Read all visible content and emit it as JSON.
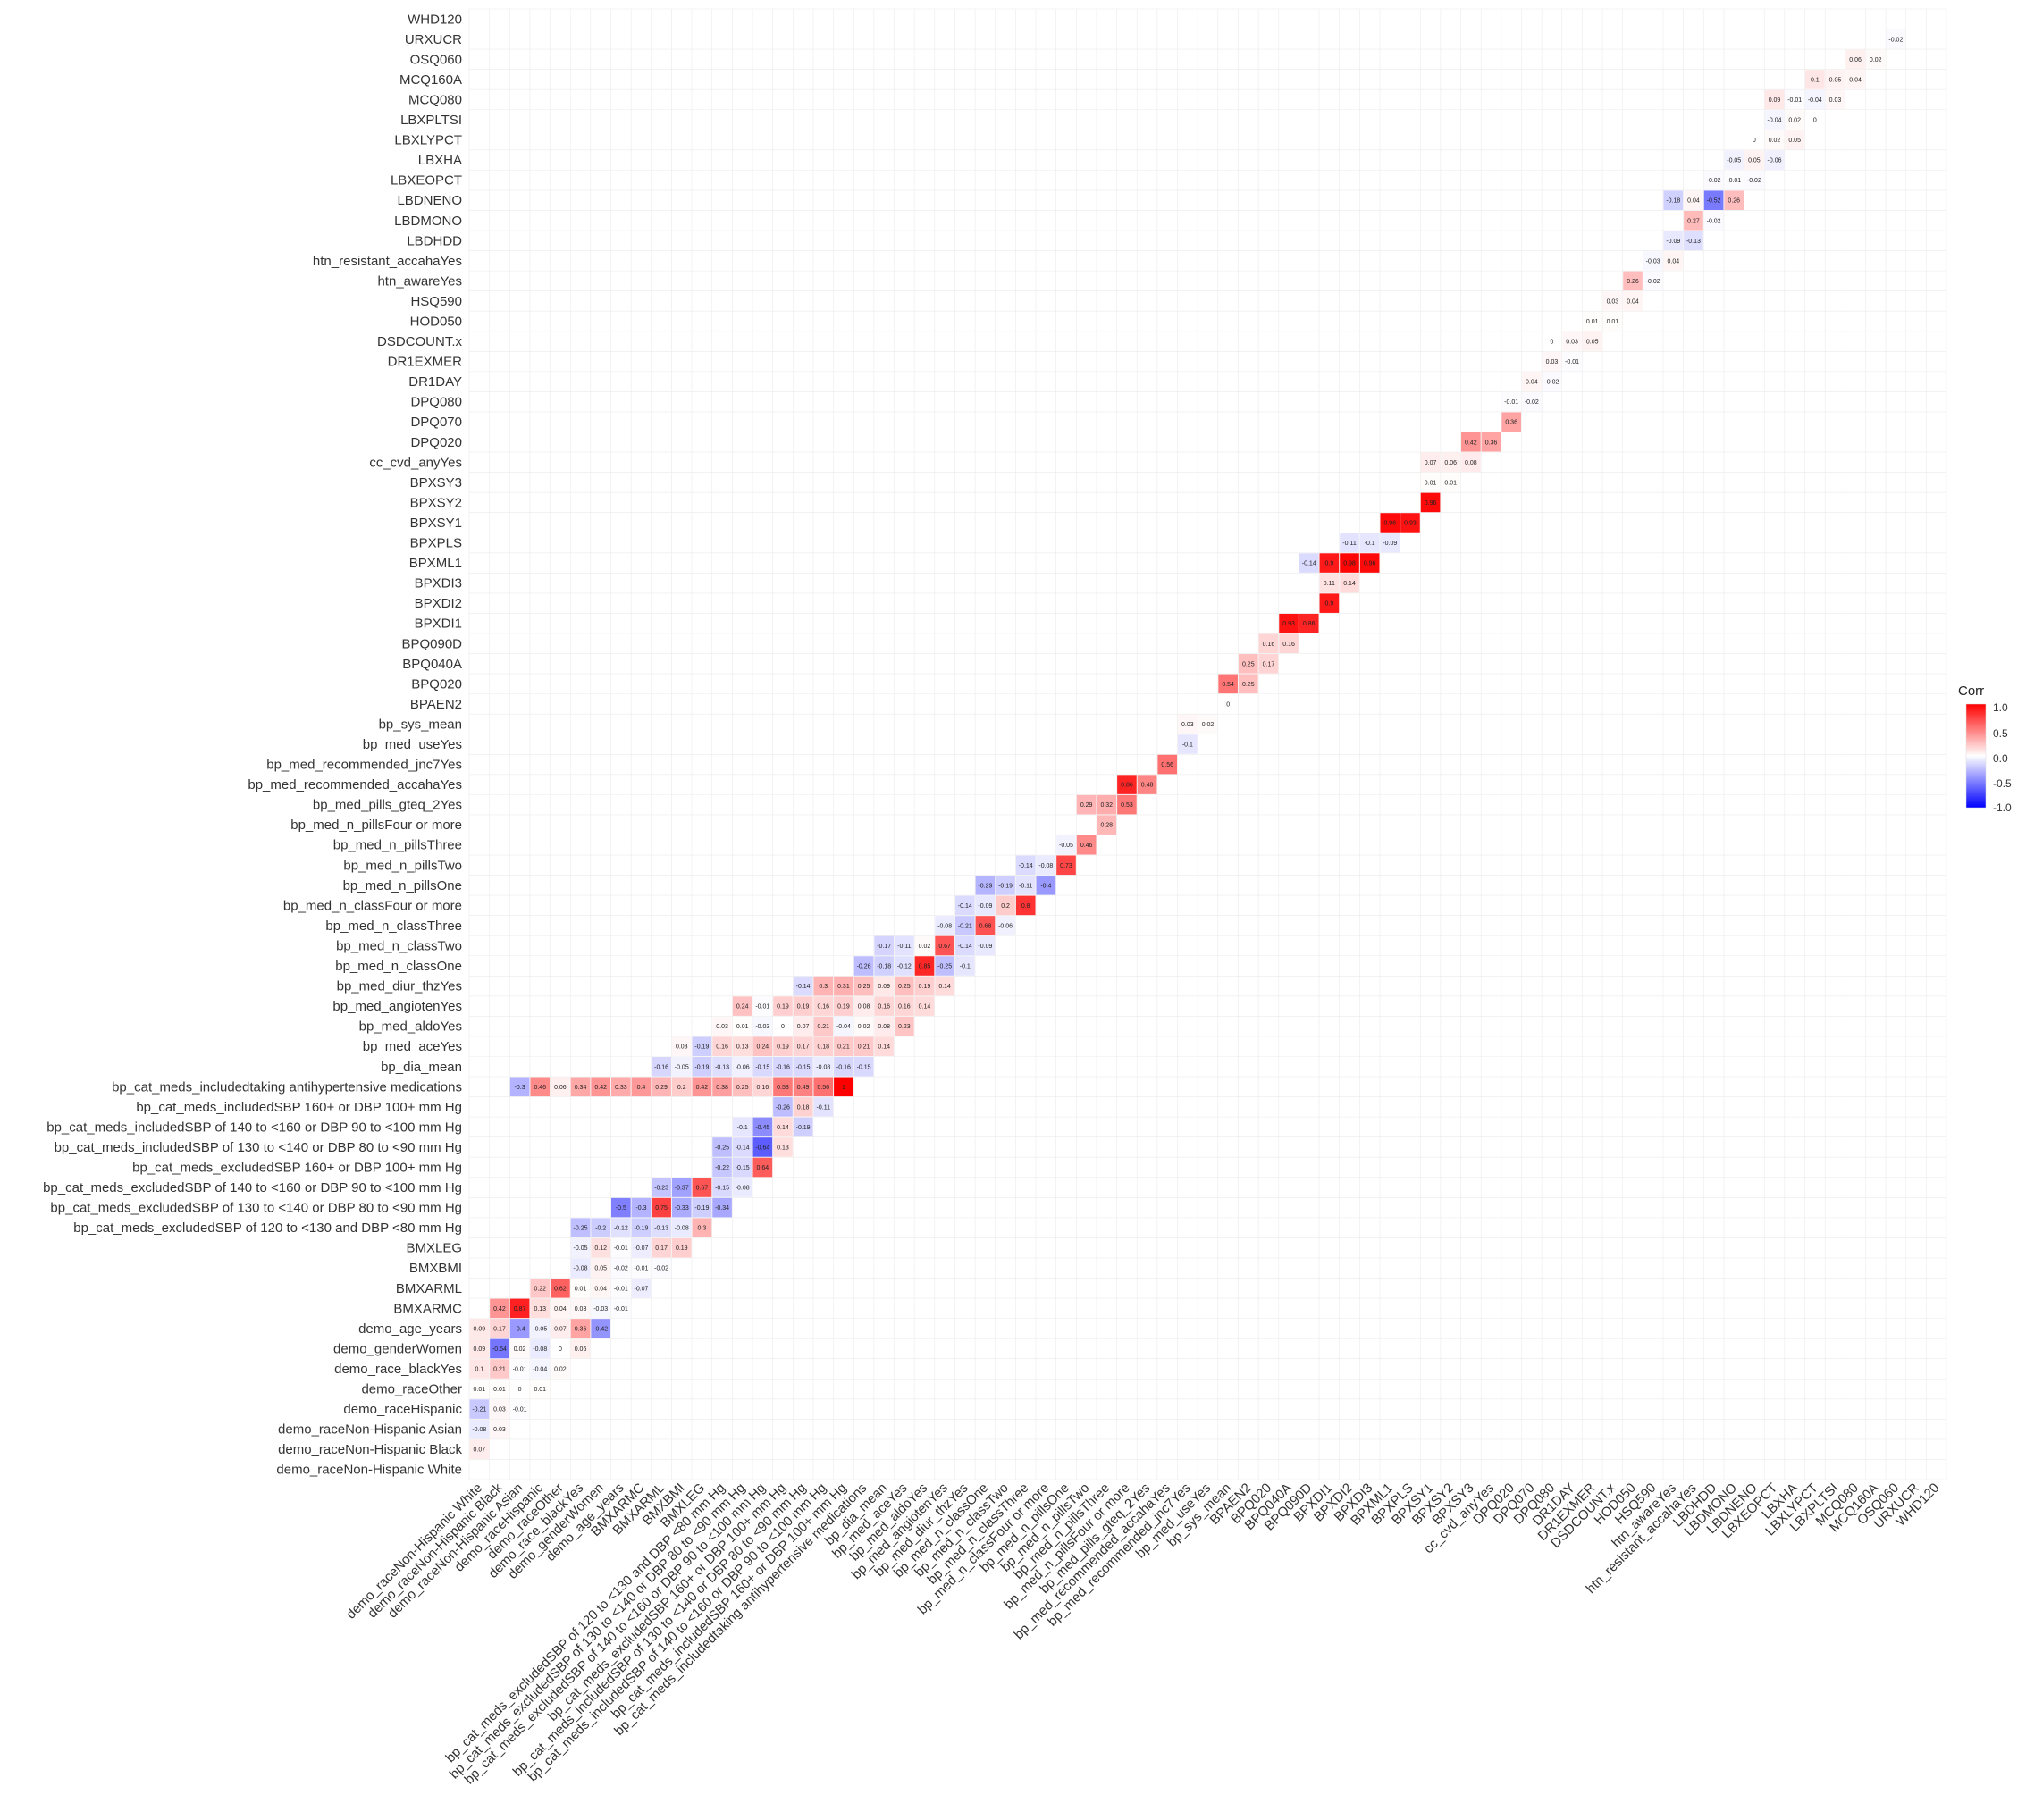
{
  "chart_data": {
    "type": "heatmap",
    "subtype": "lower-triangular correlation matrix",
    "variables": [
      "demo_raceNon-Hispanic White",
      "demo_raceNon-Hispanic Black",
      "demo_raceNon-Hispanic Asian",
      "demo_raceHispanic",
      "demo_raceOther",
      "demo_race_blackYes",
      "demo_genderWomen",
      "demo_age_years",
      "BMXARMC",
      "BMXARML",
      "BMXBMI",
      "BMXLEG",
      "bp_cat_meds_excludedSBP of 120 to <130 and DBP <80 mm Hg",
      "bp_cat_meds_excludedSBP of 130 to <140 or DBP 80 to <90 mm Hg",
      "bp_cat_meds_excludedSBP of 140 to <160 or DBP 90 to <100 mm Hg",
      "bp_cat_meds_excludedSBP 160+ or DBP 100+ mm Hg",
      "bp_cat_meds_includedSBP of 130 to <140 or DBP 80 to <90 mm Hg",
      "bp_cat_meds_includedSBP of 140 to <160 or DBP 90 to <100 mm Hg",
      "bp_cat_meds_includedSBP 160+ or DBP 100+ mm Hg",
      "bp_cat_meds_includedtaking antihypertensive medications",
      "bp_dia_mean",
      "bp_med_aceYes",
      "bp_med_aldoYes",
      "bp_med_angiotenYes",
      "bp_med_diur_thzYes",
      "bp_med_n_classOne",
      "bp_med_n_classTwo",
      "bp_med_n_classThree",
      "bp_med_n_classFour or more",
      "bp_med_n_pillsOne",
      "bp_med_n_pillsTwo",
      "bp_med_n_pillsThree",
      "bp_med_n_pillsFour or more",
      "bp_med_pills_gteq_2Yes",
      "bp_med_recommended_accahaYes",
      "bp_med_recommended_jnc7Yes",
      "bp_med_useYes",
      "bp_sys_mean",
      "BPAEN2",
      "BPQ020",
      "BPQ040A",
      "BPQ090D",
      "BPXDI1",
      "BPXDI2",
      "BPXDI3",
      "BPXML1",
      "BPXPLS",
      "BPXSY1",
      "BPXSY2",
      "BPXSY3",
      "cc_cvd_anyYes",
      "DPQ020",
      "DPQ070",
      "DPQ080",
      "DR1DAY",
      "DR1EXMER",
      "DSDCOUNT.x",
      "HOD050",
      "HSQ590",
      "htn_awareYes",
      "htn_resistant_accahaYes",
      "LBDHDD",
      "LBDMONO",
      "LBDNENO",
      "LBXEOPCT",
      "LBXHA",
      "LBXLYPCT",
      "LBXPLTSI",
      "MCQ080",
      "MCQ160A",
      "OSQ060",
      "URXUCR",
      "WHD120"
    ],
    "x_axis_extra_label": "WHD120",
    "cell_rule": "cell at (row variable i, column variable j) is shown only when j < i in the variable order; the diagonal and upper triangle are blank",
    "legend": {
      "title": "Corr",
      "ticks": [
        "1.0",
        "0.5",
        "0.0",
        "-0.5",
        "-1.0"
      ],
      "colors": {
        "high": "#ff0000",
        "mid": "#ffffff",
        "low": "#0000ff"
      },
      "placement": "right"
    },
    "value_range": [
      -1,
      1
    ],
    "grid": true,
    "values_transcribed": {
      "demo_raceNon-Hispanic White": [
        -0.54,
        -0.21,
        -0.47,
        -0.18,
        -0.54,
        0,
        0.19,
        -0.08,
        0.1,
        -0.06,
        0.02,
        0.1,
        0.21,
        0.02,
        -0.01,
        0.05,
        -0.09,
        -0.02,
        0,
        0.03,
        0.12,
        0.04,
        -0.02,
        0.07,
        0.01,
        0.04,
        -0.02,
        0.01,
        0.01,
        0.03,
        -0.03,
        0.01,
        0.05,
        0.04,
        0.02,
        0.01,
        0.01,
        0.02,
        0.02,
        0.06,
        0.07,
        0.05,
        0.08,
        0.01,
        0.03,
        0.02,
        0.02,
        0.01,
        0.05,
        0.04,
        0.03
      ],
      "demo_raceNon-Hispanic Black": [
        -0.12,
        -0.28,
        -0.11,
        1,
        0.02,
        -0.12,
        0.16,
        0.16,
        0.1,
        0.21,
        -0.01,
        -0.04,
        0.02,
        0.03,
        -0.03,
        -0.02,
        0.03,
        0.05,
        0.09,
        0.07
      ],
      "demo_raceNon-Hispanic Asian": [
        -0.11,
        -0.04,
        -0.12,
        0.01,
        -0.05,
        -0.13,
        -0.16,
        -0.13,
        -0.09,
        0.02,
        -0.08,
        0.03
      ],
      "demo_raceHispanic": [
        -0.1,
        -0.28,
        -0.06,
        0,
        -0.2,
        0.03,
        -0.21,
        0.03,
        -0.01
      ],
      "demo_raceOther": [
        -0.11,
        -0.01,
        -0.01,
        0,
        0.01,
        0.01,
        0,
        0.01
      ],
      "demo_race_blackYes": [
        0.02,
        -0.12,
        0.16,
        0.16,
        0.1,
        0.21,
        -0.01,
        -0.04,
        0.02
      ],
      "demo_genderWomen": [
        0.12,
        -0.1,
        -0.55,
        0.09,
        -0.54,
        0.02,
        -0.08,
        0,
        0.06
      ],
      "demo_age_years": [
        -0.3,
        -0.13,
        -0.18,
        -0.31,
        0.1,
        -0.3,
        0.09,
        0.17,
        -0.4,
        -0.05,
        0.07,
        0.36,
        -0.42
      ],
      "BMXARMC": [
        0.42,
        0.87,
        0.13,
        0.04,
        0.03,
        -0.03,
        -0.01
      ],
      "BMXARML": [
        0.22,
        0.62,
        0.01,
        0.04,
        -0.01,
        -0.07
      ],
      "BMXBMI": [
        -0.08,
        0.05,
        -0.02,
        -0.01,
        -0.02
      ],
      "BMXLEG": [
        -0.05,
        0.12,
        -0.01,
        -0.07,
        0.17,
        0.19
      ],
      "bp_cat_meds_excludedSBP of 120 to <130 and DBP <80 mm Hg": [
        -0.25,
        -0.2,
        -0.12,
        -0.19,
        -0.13,
        -0.08,
        0.3
      ],
      "bp_cat_meds_excludedSBP of 130 to <140 or DBP 80 to <90 mm Hg": [
        -0.5,
        -0.3,
        0.75,
        -0.33,
        -0.19,
        -0.34
      ],
      "bp_cat_meds_excludedSBP of 140 to <160 or DBP 90 to <100 mm Hg": [
        -0.23,
        -0.37,
        0.67,
        -0.15,
        -0.08
      ],
      "bp_cat_meds_excludedSBP 160+ or DBP 100+ mm Hg": [
        -0.22,
        -0.15,
        0.64
      ],
      "bp_cat_meds_includedSBP of 130 to <140 or DBP 80 to <90 mm Hg": [
        -0.25,
        -0.14,
        -0.64,
        0.13
      ],
      "bp_cat_meds_includedSBP of 140 to <160 or DBP 90 to <100 mm Hg": [
        -0.1,
        -0.45,
        0.14,
        -0.19
      ],
      "bp_cat_meds_includedSBP 160+ or DBP 100+ mm Hg": [
        -0.26,
        0.18,
        -0.11
      ],
      "bp_cat_meds_includedtaking antihypertensive medications": [
        -0.3,
        0.46,
        0.06,
        0.34,
        0.42,
        0.33,
        0.4,
        0.29,
        0.2,
        0.42,
        0.38,
        0.25,
        0.16,
        0.53,
        0.49,
        0.56,
        1
      ],
      "bp_dia_mean": [
        -0.16,
        -0.05,
        -0.19,
        -0.13,
        -0.06,
        -0.15,
        -0.16,
        -0.15,
        -0.08,
        -0.16,
        -0.15
      ],
      "bp_med_aceYes": [
        0.03,
        -0.19,
        0.16,
        0.13,
        0.24,
        0.19,
        0.17,
        0.18,
        0.21,
        0.21,
        0.14
      ],
      "bp_med_aldoYes": [
        0.03,
        0.01,
        -0.03,
        0,
        0.07,
        0.21,
        -0.04,
        0.02,
        0.08,
        0.23
      ],
      "bp_med_angiotenYes": [
        0.24,
        -0.01,
        0.19,
        0.19,
        0.16,
        0.19,
        0.08,
        0.16,
        0.16,
        0.14
      ],
      "bp_med_diur_thzYes": [
        -0.14,
        0.3,
        0.31,
        0.25,
        0.09,
        0.25,
        0.19,
        0.14
      ],
      "bp_med_n_classOne": [
        -0.26,
        -0.18,
        -0.12,
        0.85,
        -0.25,
        -0.1
      ],
      "bp_med_n_classTwo": [
        -0.17,
        -0.11,
        0.02,
        0.67,
        -0.14,
        -0.09
      ],
      "bp_med_n_classThree": [
        -0.08,
        -0.21,
        0.68,
        -0.06
      ],
      "bp_med_n_classFour or more": [
        -0.14,
        -0.09,
        0.2,
        0.8
      ],
      "bp_med_n_pillsOne": [
        -0.29,
        -0.19,
        -0.11,
        -0.4
      ],
      "bp_med_n_pillsTwo": [
        -0.14,
        -0.08,
        0.73
      ],
      "bp_med_n_pillsThree": [
        -0.05,
        0.46
      ],
      "bp_med_n_pillsFour or more": [
        0.28
      ],
      "bp_med_pills_gteq_2Yes": [
        0.29,
        0.32,
        0.53
      ],
      "bp_med_recommended_accahaYes": [
        0.86,
        0.48
      ],
      "bp_med_recommended_jnc7Yes": [
        0.56
      ],
      "bp_med_useYes": [
        -0.1
      ],
      "bp_sys_mean": [
        0.03,
        0.02
      ],
      "BPAEN2": [
        0
      ],
      "BPQ020": [
        0.54,
        0.25
      ],
      "BPQ040A": [
        0.25,
        0.17
      ],
      "BPQ090D": [
        0.16,
        0.16
      ],
      "BPXDI1": [
        0.93,
        0.86
      ],
      "BPXDI2": [
        0.9
      ],
      "BPXDI3": [
        0.11,
        0.14
      ],
      "BPXML1": [
        -0.14,
        0.9,
        0.98,
        0.96
      ],
      "BPXPLS": [
        -0.11,
        -0.1,
        -0.09
      ],
      "BPXSY1": [
        0.96,
        0.93
      ],
      "BPXSY2": [
        0.96
      ],
      "BPXSY3": [
        0.01,
        0.01
      ],
      "cc_cvd_anyYes": [
        0.07,
        0.06,
        0.08
      ],
      "DPQ020": [
        0.42,
        0.36
      ],
      "DPQ070": [
        0.36
      ],
      "DPQ080": [
        -0.01,
        -0.02
      ],
      "DR1DAY": [
        0.04,
        -0.02
      ],
      "DR1EXMER": [
        0.03,
        -0.01
      ],
      "DSDCOUNT.x": [
        0,
        0.03,
        0.05
      ],
      "HOD050": [
        0.01,
        0.01
      ],
      "HSQ590": [
        0.03,
        0.04
      ],
      "htn_awareYes": [
        0.26,
        -0.02
      ],
      "htn_resistant_accahaYes": [
        -0.03,
        0.04
      ],
      "LBDHDD": [
        -0.09,
        -0.13
      ],
      "LBDMONO": [
        0.27,
        -0.02
      ],
      "LBDNENO": [
        -0.18,
        0.04,
        -0.52,
        0.26
      ],
      "LBXEOPCT": [
        -0.02,
        -0.01,
        -0.02
      ],
      "LBXHA": [
        -0.05,
        0.05,
        -0.06
      ],
      "LBXLYPCT": [
        0,
        0.02,
        0.05
      ],
      "LBXPLTSI": [
        -0.04,
        0.02,
        0
      ],
      "MCQ080": [
        0.09,
        -0.01,
        -0.04,
        0.03
      ],
      "MCQ160A": [
        0.1,
        0.05,
        0.04
      ],
      "OSQ060": [
        0.06,
        0.02
      ],
      "URXUCR": [
        -0.02
      ]
    }
  }
}
